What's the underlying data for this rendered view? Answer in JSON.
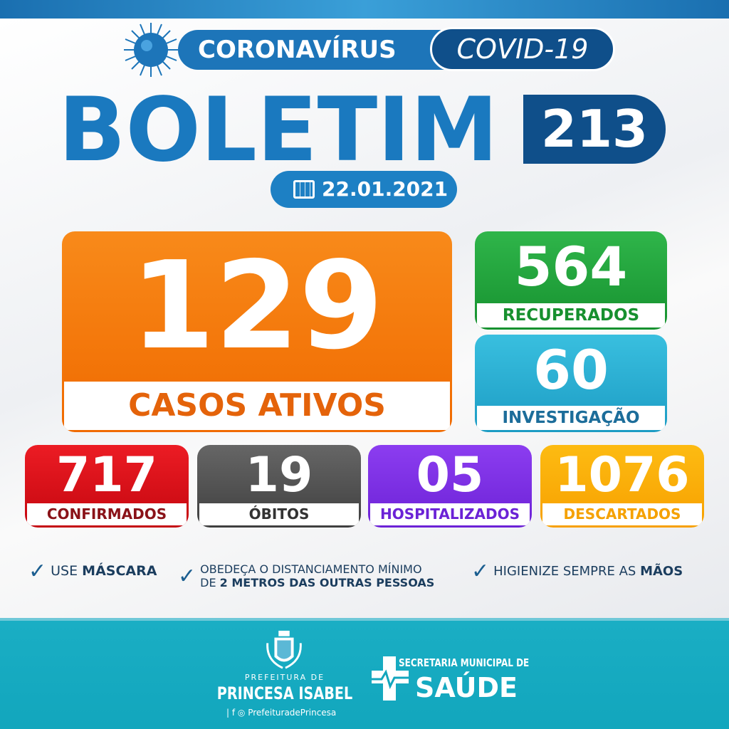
{
  "header": {
    "coronavirus": "CORONAVÍRUS",
    "covid": "COVID-19",
    "title": "BOLETIM",
    "number": "213",
    "date": "22.01.2021"
  },
  "main": {
    "value": "129",
    "label": "CASOS ATIVOS",
    "color": "#f07a0c"
  },
  "side": [
    {
      "value": "564",
      "label": "RECUPERADOS",
      "color": "#22a33b"
    },
    {
      "value": "60",
      "label": "INVESTIGAÇÃO",
      "color": "#2bafd4"
    }
  ],
  "stats": [
    {
      "value": "717",
      "label": "CONFIRMADOS",
      "color": "#e0121a"
    },
    {
      "value": "19",
      "label": "ÓBITOS",
      "color": "#555555"
    },
    {
      "value": "05",
      "label": "HOSPITALIZADOS",
      "color": "#7b2fe6"
    },
    {
      "value": "1076",
      "label": "DESCARTADOS",
      "color": "#fbb00a"
    }
  ],
  "tips": [
    {
      "pre": "USE ",
      "bold": "MÁSCARA"
    },
    {
      "line1": "OBEDEÇA O DISTANCIAMENTO MÍNIMO",
      "pre": "DE ",
      "bold": "2 METROS DAS OUTRAS PESSOAS"
    },
    {
      "pre": "HIGIENIZE SEMPRE AS ",
      "bold": "MÃOS"
    }
  ],
  "footer": {
    "pref_small": "PREFEITURA DE",
    "pref_big": "PRINCESA ISABEL",
    "social": "PrefeituradePrincesa",
    "sec_small": "SECRETARIA MUNICIPAL DE",
    "sec_big": "SAÚDE"
  }
}
